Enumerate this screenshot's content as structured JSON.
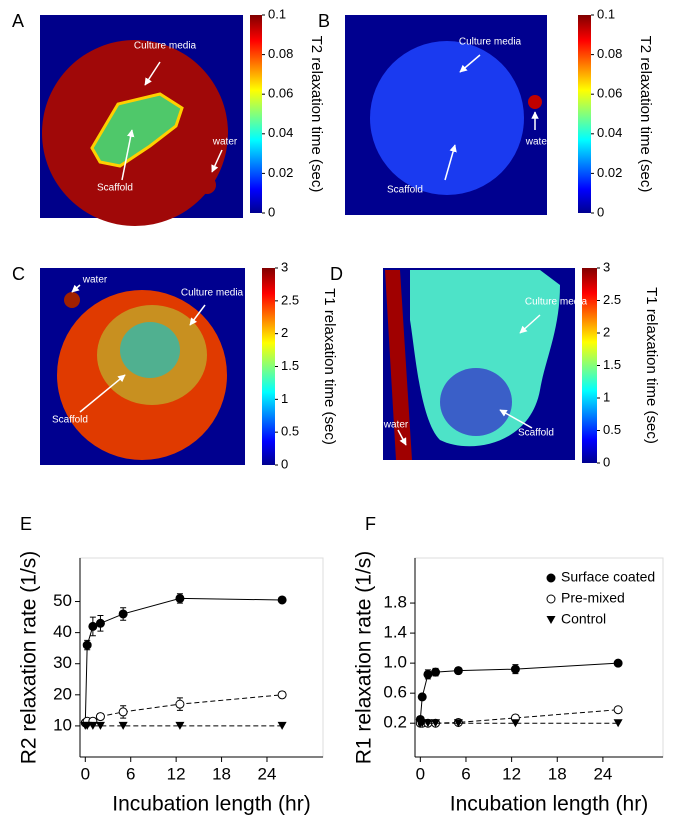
{
  "panels": [
    {
      "label": "A",
      "colorbar_label": "T2 relaxation time (sec)",
      "colorbar_lim": [
        0,
        0.1
      ],
      "colorbar_ticks": [
        0,
        0.02,
        0.04,
        0.06,
        0.08,
        0.1
      ],
      "annotations": [
        "Culture media",
        "Scaffold",
        "water"
      ]
    },
    {
      "label": "B",
      "colorbar_label": "T2 relaxation time (sec)",
      "colorbar_lim": [
        0,
        0.1
      ],
      "colorbar_ticks": [
        0,
        0.02,
        0.04,
        0.06,
        0.08,
        0.1
      ],
      "annotations": [
        "Culture media",
        "water",
        "Scaffold"
      ]
    },
    {
      "label": "C",
      "colorbar_label": "T1 relaxation time (sec)",
      "colorbar_lim": [
        0,
        3
      ],
      "colorbar_ticks": [
        0,
        0.5,
        1,
        1.5,
        2,
        2.5,
        3
      ],
      "annotations": [
        "water",
        "Culture media",
        "Scaffold"
      ]
    },
    {
      "label": "D",
      "colorbar_label": "T1 relaxation time (sec)",
      "colorbar_lim": [
        0,
        3
      ],
      "colorbar_ticks": [
        0,
        0.5,
        1,
        1.5,
        2,
        2.5,
        3
      ],
      "annotations": [
        "Culture media",
        "water",
        "Scaffold"
      ]
    }
  ],
  "chart_data": [
    {
      "type": "line",
      "panel_label": "E",
      "y_label": "R2 relaxation rate (1/s)",
      "x_label": "Incubation length (hr)",
      "x": [
        0,
        0.25,
        1,
        2,
        5,
        12.5,
        26
      ],
      "xlim": [
        -0.7,
        31.4
      ],
      "xticks": [
        0,
        6,
        12,
        18,
        24
      ],
      "ylim": [
        0,
        64
      ],
      "yticks": [
        10,
        20,
        30,
        40,
        50
      ],
      "series": [
        {
          "name": "Surface coated",
          "color": "#000000",
          "marker": "filled-circle",
          "linestyle": "solid",
          "values": [
            11,
            36,
            42,
            43,
            46,
            51,
            50.5
          ],
          "errors": [
            0,
            1.5,
            3,
            2.5,
            2,
            1.5,
            0.8
          ]
        },
        {
          "name": "Pre-mixed",
          "color": "#000000",
          "marker": "open-circle",
          "linestyle": "dashed",
          "values": [
            11,
            11.5,
            11.5,
            13,
            14.5,
            17,
            20
          ],
          "errors": [
            0,
            0.5,
            1,
            1,
            2,
            2,
            1
          ]
        },
        {
          "name": "Control",
          "color": "#000000",
          "marker": "triangle-down",
          "linestyle": "dashed",
          "values": [
            10,
            10,
            10,
            10,
            10,
            10,
            10
          ],
          "errors": [
            0,
            0,
            0,
            0,
            0,
            0,
            0
          ]
        }
      ]
    },
    {
      "type": "line",
      "panel_label": "F",
      "y_label": "R1 relaxation rate (1/s)",
      "x_label": "Incubation length (hr)",
      "x": [
        0,
        0.25,
        1,
        2,
        5,
        12.5,
        26
      ],
      "xlim": [
        -0.7,
        31.9
      ],
      "xticks": [
        0,
        6,
        12,
        18,
        24
      ],
      "ylim": [
        -0.25,
        2.4
      ],
      "yticks": [
        0.2,
        0.6,
        {
          "value": 1,
          "label": "1.0"
        },
        1.4,
        1.8
      ],
      "legend": "upper right",
      "series": [
        {
          "name": "Surface coated",
          "color": "#000000",
          "marker": "filled-circle",
          "linestyle": "solid",
          "values": [
            0.25,
            0.55,
            0.85,
            0.88,
            0.9,
            0.92,
            1.0
          ],
          "errors": [
            0,
            0.03,
            0.06,
            0.05,
            0.04,
            0.06,
            0.03
          ]
        },
        {
          "name": "Pre-mixed",
          "color": "#000000",
          "marker": "open-circle",
          "linestyle": "dashed",
          "values": [
            0.2,
            0.2,
            0.2,
            0.2,
            0.21,
            0.27,
            0.38
          ],
          "errors": [
            0,
            0,
            0,
            0,
            0,
            0.01,
            0.01
          ]
        },
        {
          "name": "Control",
          "color": "#000000",
          "marker": "triangle-down",
          "linestyle": "dashed",
          "values": [
            0.2,
            0.2,
            0.2,
            0.2,
            0.2,
            0.2,
            0.2
          ],
          "errors": [
            0,
            0,
            0,
            0,
            0,
            0,
            0
          ]
        }
      ]
    }
  ]
}
